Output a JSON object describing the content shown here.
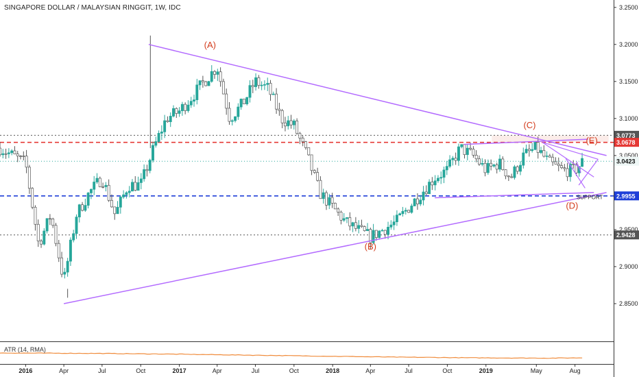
{
  "header": {
    "title": "SINGAPORE DOLLAR / MALAYSIAN RINGGIT, 1W, IDC"
  },
  "indicator": {
    "label": "ATR (14, RMA)"
  },
  "colors": {
    "up": "#26a69a",
    "down": "#555555",
    "trend": "#b36bff",
    "red_level": "#e53935",
    "blue_level": "#1e3fd8",
    "grey_level": "#555555",
    "atr_line": "#f08c3c"
  },
  "chart_data": {
    "type": "candlestick",
    "price_axis": {
      "ylim": [
        2.8,
        3.26
      ],
      "ticks": [
        "3.2500",
        "3.2000",
        "3.1500",
        "3.1000",
        "3.0500",
        "2.9500",
        "2.9000",
        "2.8500"
      ],
      "tick_values": [
        3.25,
        3.2,
        3.15,
        3.1,
        3.05,
        2.95,
        2.9,
        2.85
      ]
    },
    "time_axis": {
      "xlim": [
        "2015-11",
        "2019-11"
      ],
      "labels": [
        "2016",
        "Apr",
        "Jul",
        "Oct",
        "2017",
        "Apr",
        "Jul",
        "Oct",
        "2018",
        "Apr",
        "Jul",
        "Oct",
        "2019",
        "May",
        "Aug"
      ],
      "dates": [
        "2016-01-01",
        "2016-04-01",
        "2016-07-01",
        "2016-10-01",
        "2017-01-01",
        "2017-04-01",
        "2017-07-01",
        "2017-10-01",
        "2018-01-01",
        "2018-04-01",
        "2018-07-01",
        "2018-10-01",
        "2019-01-01",
        "2019-05-01",
        "2019-08-01"
      ]
    },
    "price_path": [
      [
        "2015-11-01",
        3.06
      ],
      [
        "2015-12-01",
        3.05
      ],
      [
        "2016-01-01",
        3.04
      ],
      [
        "2016-02-01",
        2.93
      ],
      [
        "2016-03-01",
        2.97
      ],
      [
        "2016-04-01",
        2.88
      ],
      [
        "2016-05-01",
        2.97
      ],
      [
        "2016-06-01",
        3.0
      ],
      [
        "2016-07-01",
        3.02
      ],
      [
        "2016-08-01",
        2.97
      ],
      [
        "2016-09-01",
        3.01
      ],
      [
        "2016-10-01",
        3.01
      ],
      [
        "2016-11-01",
        3.06
      ],
      [
        "2016-12-01",
        3.1
      ],
      [
        "2017-01-01",
        3.11
      ],
      [
        "2017-02-01",
        3.13
      ],
      [
        "2017-03-01",
        3.15
      ],
      [
        "2017-04-01",
        3.17
      ],
      [
        "2017-05-01",
        3.1
      ],
      [
        "2017-06-01",
        3.12
      ],
      [
        "2017-07-01",
        3.15
      ],
      [
        "2017-08-01",
        3.14
      ],
      [
        "2017-09-01",
        3.1
      ],
      [
        "2017-10-01",
        3.09
      ],
      [
        "2017-11-01",
        3.05
      ],
      [
        "2017-12-01",
        3.0
      ],
      [
        "2018-01-01",
        2.98
      ],
      [
        "2018-02-01",
        2.96
      ],
      [
        "2018-03-01",
        2.95
      ],
      [
        "2018-04-01",
        2.94
      ],
      [
        "2018-05-01",
        2.95
      ],
      [
        "2018-06-01",
        2.96
      ],
      [
        "2018-07-01",
        2.98
      ],
      [
        "2018-08-01",
        3.0
      ],
      [
        "2018-09-01",
        3.02
      ],
      [
        "2018-10-01",
        3.03
      ],
      [
        "2018-11-01",
        3.06
      ],
      [
        "2018-12-01",
        3.05
      ],
      [
        "2019-01-01",
        3.03
      ],
      [
        "2019-02-01",
        3.04
      ],
      [
        "2019-03-01",
        3.02
      ],
      [
        "2019-04-01",
        3.05
      ],
      [
        "2019-05-01",
        3.06
      ],
      [
        "2019-06-01",
        3.04
      ],
      [
        "2019-07-01",
        3.03
      ],
      [
        "2019-08-01",
        3.03
      ],
      [
        "2019-08-20",
        3.0423
      ]
    ],
    "price_levels": [
      {
        "value": 3.0773,
        "label": "3.0773",
        "style": "grey-dotted",
        "color": "#555555"
      },
      {
        "value": 3.0678,
        "label": "3.0678",
        "style": "red-dashed",
        "color": "#e53935"
      },
      {
        "value": 3.0423,
        "label": "3.0423",
        "style": "current",
        "color": "#26a69a"
      },
      {
        "value": 2.9955,
        "label": "2.9955",
        "style": "blue-dashed",
        "color": "#1e3fd8"
      },
      {
        "value": 2.9428,
        "label": "2.9428",
        "style": "grey-dotted",
        "color": "#555555"
      }
    ],
    "trendlines": [
      {
        "from": [
          "2016-10-20",
          3.2
        ],
        "to": [
          "2019-10-15",
          3.05
        ]
      },
      {
        "from": [
          "2016-04-01",
          2.85
        ],
        "to": [
          "2019-10-15",
          3.0
        ]
      },
      {
        "from": [
          "2018-09-01",
          2.993
        ],
        "to": [
          "2019-09-15",
          3.0
        ]
      },
      {
        "from": [
          "2018-11-10",
          3.065
        ],
        "to": [
          "2019-09-01",
          3.072
        ]
      }
    ],
    "annotations": [
      {
        "text": "(A)",
        "x": "2017-03-15",
        "y": 3.195,
        "color": "#d33c1c"
      },
      {
        "text": "(B)",
        "x": "2018-04-01",
        "y": 2.923,
        "color": "#d33c1c"
      },
      {
        "text": "(C)",
        "x": "2019-04-15",
        "y": 3.087,
        "color": "#d33c1c"
      },
      {
        "text": "(D)",
        "x": "2019-07-25",
        "y": 2.978,
        "color": "#d33c1c"
      },
      {
        "text": "(E)",
        "x": "2019-09-10",
        "y": 3.066,
        "color": "#d33c1c"
      },
      {
        "text": "SUPPORT",
        "x": "2019-09-05",
        "y": 2.991,
        "color": "#222222"
      }
    ],
    "atr": {
      "series": [
        [
          "2015-11-01",
          0.03
        ],
        [
          "2016-06-01",
          0.029
        ],
        [
          "2016-12-01",
          0.027
        ],
        [
          "2017-06-01",
          0.024
        ],
        [
          "2017-12-01",
          0.021
        ],
        [
          "2018-06-01",
          0.018
        ],
        [
          "2018-12-01",
          0.016
        ],
        [
          "2019-06-01",
          0.015
        ],
        [
          "2019-08-20",
          0.016
        ]
      ],
      "ylim": [
        0.0,
        0.06
      ]
    }
  }
}
